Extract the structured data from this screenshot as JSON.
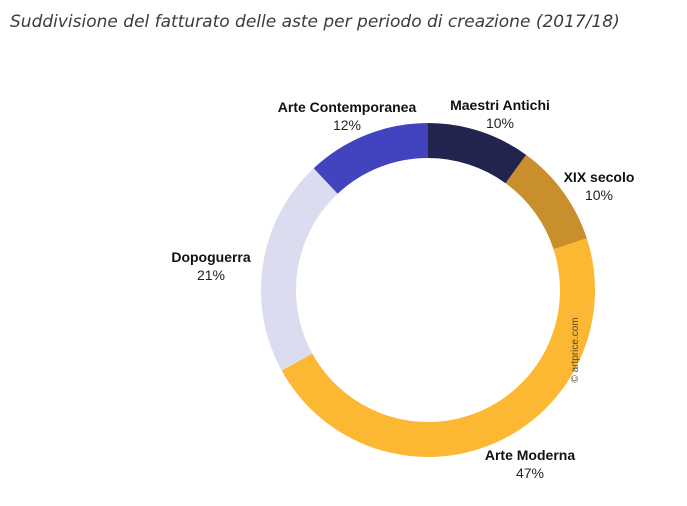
{
  "title": "Suddivisione del fatturato delle aste per periodo di creazione (2017/18)",
  "watermark": "© artprice.com",
  "chart_data": {
    "type": "pie",
    "style": "donut",
    "start": "top",
    "direction": "clockwise",
    "title": "Suddivisione del fatturato delle aste per periodo di creazione (2017/18)",
    "slices": [
      {
        "label": "Maestri Antichi",
        "value": 10,
        "value_label": "10%",
        "color": "#23234f"
      },
      {
        "label": "XIX secolo",
        "value": 10,
        "value_label": "10%",
        "color": "#c98f2c"
      },
      {
        "label": "Arte Moderna",
        "value": 47,
        "value_label": "47%",
        "color": "#fcb733"
      },
      {
        "label": "Dopoguerra",
        "value": 21,
        "value_label": "21%",
        "color": "#dcdcf0"
      },
      {
        "label": "Arte Contemporanea",
        "value": 12,
        "value_label": "12%",
        "color": "#4343c0"
      }
    ]
  }
}
